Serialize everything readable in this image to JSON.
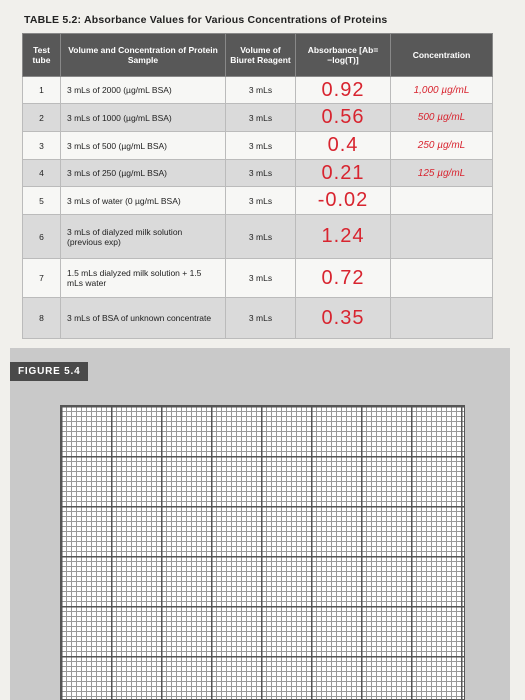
{
  "table_title": "TABLE 5.2: Absorbance Values for Various Concentrations of Proteins",
  "table": {
    "headers": [
      "Test tube",
      "Volume and Concentration of Protein Sample",
      "Volume of Biuret Reagent",
      "Absorbance [Ab= −log(T)]",
      "Concentration"
    ],
    "rows": [
      [
        "1",
        "3 mLs of 2000 (µg/mL BSA)",
        "3 mLs",
        "0.92",
        "1,000 µg/mL"
      ],
      [
        "2",
        "3 mLs of 1000 (µg/mL BSA)",
        "3 mLs",
        "0.56",
        "500 µg/mL"
      ],
      [
        "3",
        "3 mLs of 500 (µg/mL BSA)",
        "3 mLs",
        "0.4",
        "250 µg/mL"
      ],
      [
        "4",
        "3 mLs of 250 (µg/mL BSA)",
        "3 mLs",
        "0.21",
        "125 µg/mL"
      ],
      [
        "5",
        "3 mLs of water (0 µg/mL BSA)",
        "3 mLs",
        "-0.02"
      ],
      [
        "6",
        "3 mLs of dialyzed milk solution (previous exp)",
        "3 mLs",
        "1.24"
      ],
      [
        "7",
        "1.5 mLs dialyzed milk solution + 1.5 mLs water",
        "3 mLs",
        "0.72"
      ],
      [
        "8",
        "3 mLs of BSA of unknown concentrate",
        "3 mLs",
        "0.35"
      ]
    ]
  },
  "figure_label": "FIGURE 5.4"
}
